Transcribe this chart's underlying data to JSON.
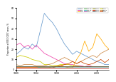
{
  "years": [
    1989,
    1990,
    1991,
    1992,
    1993,
    1994,
    1995,
    1996,
    1997,
    1998,
    1999,
    2000,
    2001,
    2002,
    2003,
    2004,
    2005,
    2006,
    2007,
    2008,
    2009,
    2010,
    2011,
    2012
  ],
  "PT2": [
    15,
    18,
    22,
    20,
    25,
    22,
    38,
    55,
    50,
    46,
    40,
    32,
    25,
    20,
    15,
    18,
    16,
    14,
    12,
    10,
    8,
    7,
    5,
    5
  ],
  "PT4": [
    24,
    26,
    22,
    24,
    20,
    24,
    20,
    16,
    14,
    12,
    10,
    8,
    6,
    5,
    5,
    4,
    4,
    3,
    4,
    3,
    3,
    3,
    3,
    3
  ],
  "PT8": [
    2,
    2,
    2,
    2,
    2,
    2,
    2,
    2,
    2,
    3,
    4,
    4,
    3,
    2,
    2,
    10,
    16,
    28,
    18,
    22,
    35,
    30,
    24,
    20
  ],
  "PT21": [
    12,
    14,
    13,
    12,
    10,
    9,
    8,
    5,
    5,
    4,
    4,
    5,
    5,
    5,
    4,
    4,
    3,
    3,
    3,
    3,
    3,
    3,
    3,
    3
  ],
  "PTunk": [
    5,
    4,
    5,
    5,
    5,
    4,
    4,
    4,
    5,
    6,
    8,
    10,
    12,
    10,
    8,
    6,
    8,
    10,
    12,
    14,
    12,
    16,
    18,
    20
  ],
  "PT34": [
    2,
    2,
    2,
    2,
    2,
    2,
    2,
    2,
    2,
    2,
    3,
    4,
    5,
    6,
    8,
    6,
    8,
    6,
    5,
    6,
    8,
    10,
    7,
    10
  ],
  "PT14b": [
    2,
    2,
    2,
    2,
    2,
    2,
    2,
    2,
    2,
    2,
    2,
    2,
    2,
    2,
    2,
    2,
    2,
    2,
    2,
    2,
    2,
    2,
    2,
    2
  ],
  "PT21a": [
    3,
    3,
    3,
    3,
    3,
    3,
    2,
    2,
    2,
    2,
    2,
    2,
    2,
    2,
    2,
    2,
    2,
    2,
    2,
    2,
    2,
    2,
    2,
    2
  ],
  "PT28": [
    2,
    2,
    2,
    2,
    2,
    2,
    2,
    2,
    2,
    2,
    2,
    2,
    2,
    2,
    2,
    2,
    2,
    2,
    2,
    2,
    2,
    2,
    2,
    2
  ],
  "PT32": [
    3,
    3,
    3,
    3,
    3,
    3,
    3,
    3,
    3,
    3,
    3,
    3,
    3,
    3,
    3,
    3,
    3,
    3,
    3,
    3,
    3,
    3,
    3,
    3
  ],
  "PT49": [
    2,
    2,
    2,
    2,
    2,
    2,
    2,
    2,
    2,
    2,
    2,
    2,
    2,
    2,
    2,
    2,
    2,
    2,
    2,
    2,
    2,
    2,
    2,
    2
  ],
  "PT54": [
    3,
    3,
    3,
    3,
    3,
    3,
    3,
    3,
    3,
    3,
    3,
    3,
    3,
    3,
    3,
    3,
    3,
    3,
    3,
    3,
    3,
    3,
    3,
    3
  ],
  "colors": {
    "PT2": "#6699cc",
    "PT4": "#ee44aa",
    "PT8": "#ffaa00",
    "PT21": "#cccc00",
    "PTunk": "#cc8844",
    "PT34": "#cc4400",
    "PT14b": "#44aa44",
    "PT21a": "#44bbbb",
    "PT28": "#aa44aa",
    "PT32": "#888800",
    "PT49": "#cc2200",
    "PT54": "#555555"
  },
  "legend_order": [
    "PT2",
    "PT4",
    "PT8",
    "PT14b",
    "PT21a",
    "PT28",
    "PT32",
    "PT49",
    "PT54",
    "PT21",
    "PTunk",
    "PT34"
  ],
  "ylabel": "Proportion of STEC O157 cases, %",
  "xlim": [
    1989,
    2012
  ],
  "ylim": [
    0,
    60
  ],
  "yticks": [
    0,
    10,
    20,
    30,
    40,
    50,
    60
  ],
  "xticks": [
    1989,
    1994,
    1999,
    2004,
    2009
  ],
  "xtick_labels": [
    "1989",
    "1994",
    "1999",
    "2004",
    "2009"
  ],
  "bg_color": "#ffffff"
}
